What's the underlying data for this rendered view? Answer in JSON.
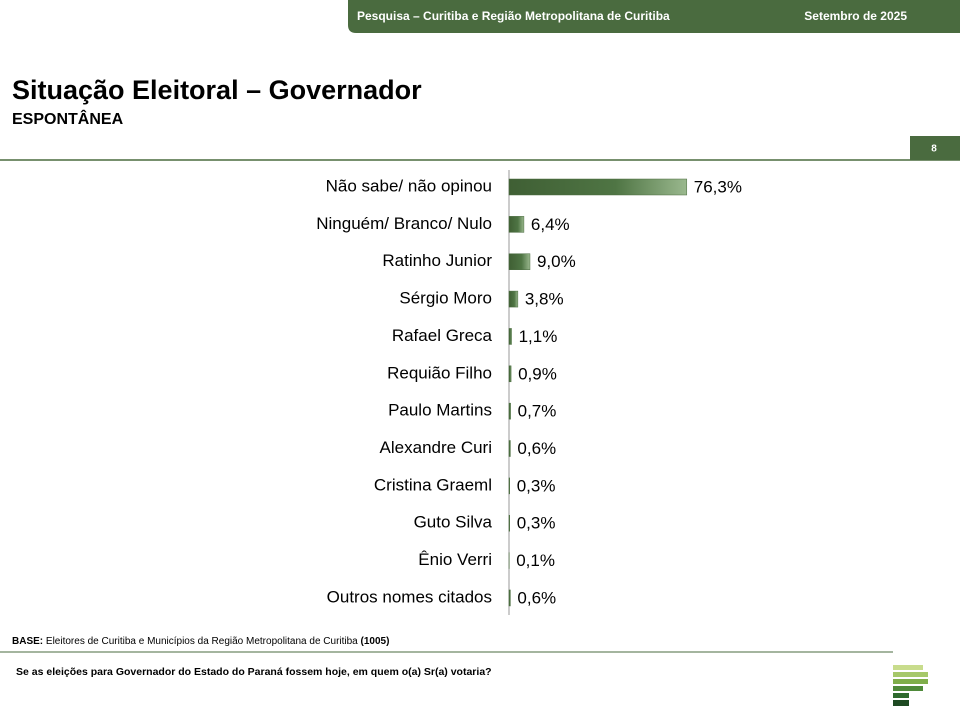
{
  "header": {
    "survey": "Pesquisa – Curitiba e Região Metropolitana de Curitiba",
    "date": "Setembro de 2025",
    "page_number": 8
  },
  "chart_data": {
    "type": "bar",
    "orientation": "horizontal",
    "title": "Situação Eleitoral – Governador",
    "subtitle": "ESPONTÂNEA",
    "categories": [
      "Não sabe/ não opinou",
      "Ninguém/ Branco/ Nulo",
      "Ratinho Junior",
      "Sérgio Moro",
      "Rafael Greca",
      "Requião Filho",
      "Paulo Martins",
      "Alexandre Curi",
      "Cristina Graeml",
      "Guto Silva",
      "Ênio Verri",
      "Outros nomes citados"
    ],
    "values": [
      76.3,
      6.4,
      9.0,
      3.8,
      1.1,
      0.9,
      0.7,
      0.6,
      0.3,
      0.3,
      0.1,
      0.6
    ],
    "value_labels": [
      "76,3%",
      "6,4%",
      "9,0%",
      "3,8%",
      "1,1%",
      "0,9%",
      "0,7%",
      "0,6%",
      "0,3%",
      "0,3%",
      "0,1%",
      "0,6%"
    ],
    "color": "#4a6b3f"
  },
  "footer": {
    "base_label": "BASE:",
    "base_text": "Eleitores de Curitiba e Municípios da Região Metropolitana de Curitiba",
    "base_n": "(1005)",
    "question": "Se as eleições para Governador do Estado do Paraná fossem hoje, em quem o(a) Sr(a) votaria?"
  }
}
